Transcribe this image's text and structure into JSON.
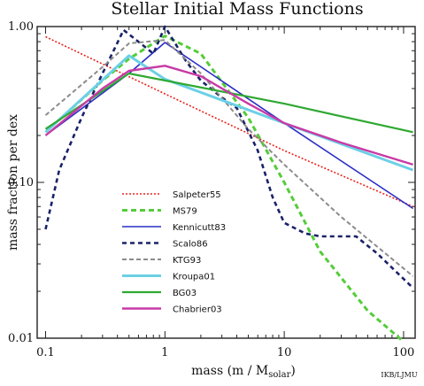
{
  "chart_data": {
    "type": "line",
    "title": "Stellar Initial Mass Functions",
    "xlabel_main": "mass  (m  /  M",
    "xlabel_sub": "solar",
    "xlabel_end": ")",
    "ylabel": "mass fraction per dex",
    "credit": "IKB/LJMU",
    "x_scale": "log",
    "y_scale": "log",
    "xlim": [
      0.085,
      125
    ],
    "ylim": [
      0.01,
      1.0
    ],
    "x_ticks": [
      {
        "value": 0.1,
        "label": "0.1"
      },
      {
        "value": 1,
        "label": "1"
      },
      {
        "value": 10,
        "label": "10"
      },
      {
        "value": 100,
        "label": "100"
      }
    ],
    "y_ticks": [
      {
        "value": 0.01,
        "label": "0.01"
      },
      {
        "value": 0.1,
        "label": "0.10"
      },
      {
        "value": 1,
        "label": "1.00"
      }
    ],
    "grid": false,
    "legend_position": "lower-left",
    "series": [
      {
        "name": "Salpeter55",
        "color": "#e8241c",
        "dash": "2,2",
        "width": 1.6,
        "points": [
          [
            0.1,
            0.86
          ],
          [
            1,
            0.37
          ],
          [
            10,
            0.16
          ],
          [
            120,
            0.07
          ]
        ]
      },
      {
        "name": "MS79",
        "color": "#55cc3a",
        "dash": "6,4",
        "width": 3,
        "points": [
          [
            0.1,
            0.21
          ],
          [
            0.3,
            0.45
          ],
          [
            0.5,
            0.62
          ],
          [
            1,
            0.87
          ],
          [
            2,
            0.67
          ],
          [
            5,
            0.26
          ],
          [
            10,
            0.1
          ],
          [
            20,
            0.036
          ],
          [
            50,
            0.015
          ],
          [
            100,
            0.0095
          ]
        ]
      },
      {
        "name": "Kennicutt83",
        "color": "#2a2ec4",
        "dash": "",
        "width": 1.6,
        "points": [
          [
            0.1,
            0.2
          ],
          [
            0.5,
            0.5
          ],
          [
            1,
            0.79
          ],
          [
            10,
            0.24
          ],
          [
            120,
            0.068
          ]
        ]
      },
      {
        "name": "Scalo86",
        "color": "#1a2268",
        "dash": "5,4",
        "width": 2.6,
        "points": [
          [
            0.1,
            0.05
          ],
          [
            0.13,
            0.12
          ],
          [
            0.2,
            0.26
          ],
          [
            0.3,
            0.5
          ],
          [
            0.45,
            0.95
          ],
          [
            0.6,
            0.8
          ],
          [
            0.8,
            0.67
          ],
          [
            1,
            1.0
          ],
          [
            1.5,
            0.6
          ],
          [
            2,
            0.45
          ],
          [
            3,
            0.35
          ],
          [
            4,
            0.3
          ],
          [
            6,
            0.16
          ],
          [
            8,
            0.08
          ],
          [
            10,
            0.055
          ],
          [
            15,
            0.047
          ],
          [
            20,
            0.045
          ],
          [
            40,
            0.045
          ],
          [
            60,
            0.035
          ],
          [
            120,
            0.021
          ]
        ]
      },
      {
        "name": "KTG93",
        "color": "#8c8c8c",
        "dash": "5,3",
        "width": 2,
        "points": [
          [
            0.1,
            0.27
          ],
          [
            0.3,
            0.55
          ],
          [
            0.5,
            0.78
          ],
          [
            1,
            0.82
          ],
          [
            2,
            0.5
          ],
          [
            5,
            0.22
          ],
          [
            10,
            0.13
          ],
          [
            30,
            0.06
          ],
          [
            120,
            0.025
          ]
        ]
      },
      {
        "name": "Kroupa01",
        "color": "#6cd0e6",
        "dash": "",
        "width": 3,
        "points": [
          [
            0.1,
            0.21
          ],
          [
            0.5,
            0.65
          ],
          [
            1,
            0.46
          ],
          [
            10,
            0.24
          ],
          [
            120,
            0.12
          ]
        ]
      },
      {
        "name": "BG03",
        "color": "#2fa832",
        "dash": "",
        "width": 2.2,
        "points": [
          [
            0.1,
            0.22
          ],
          [
            0.5,
            0.5
          ],
          [
            10,
            0.32
          ],
          [
            120,
            0.21
          ]
        ]
      },
      {
        "name": "Chabrier03",
        "color": "#c83aa6",
        "dash": "",
        "width": 2.4,
        "points": [
          [
            0.1,
            0.2
          ],
          [
            0.3,
            0.4
          ],
          [
            0.5,
            0.52
          ],
          [
            1,
            0.56
          ],
          [
            2,
            0.48
          ],
          [
            5,
            0.32
          ],
          [
            10,
            0.24
          ],
          [
            30,
            0.18
          ],
          [
            120,
            0.13
          ]
        ]
      }
    ]
  }
}
